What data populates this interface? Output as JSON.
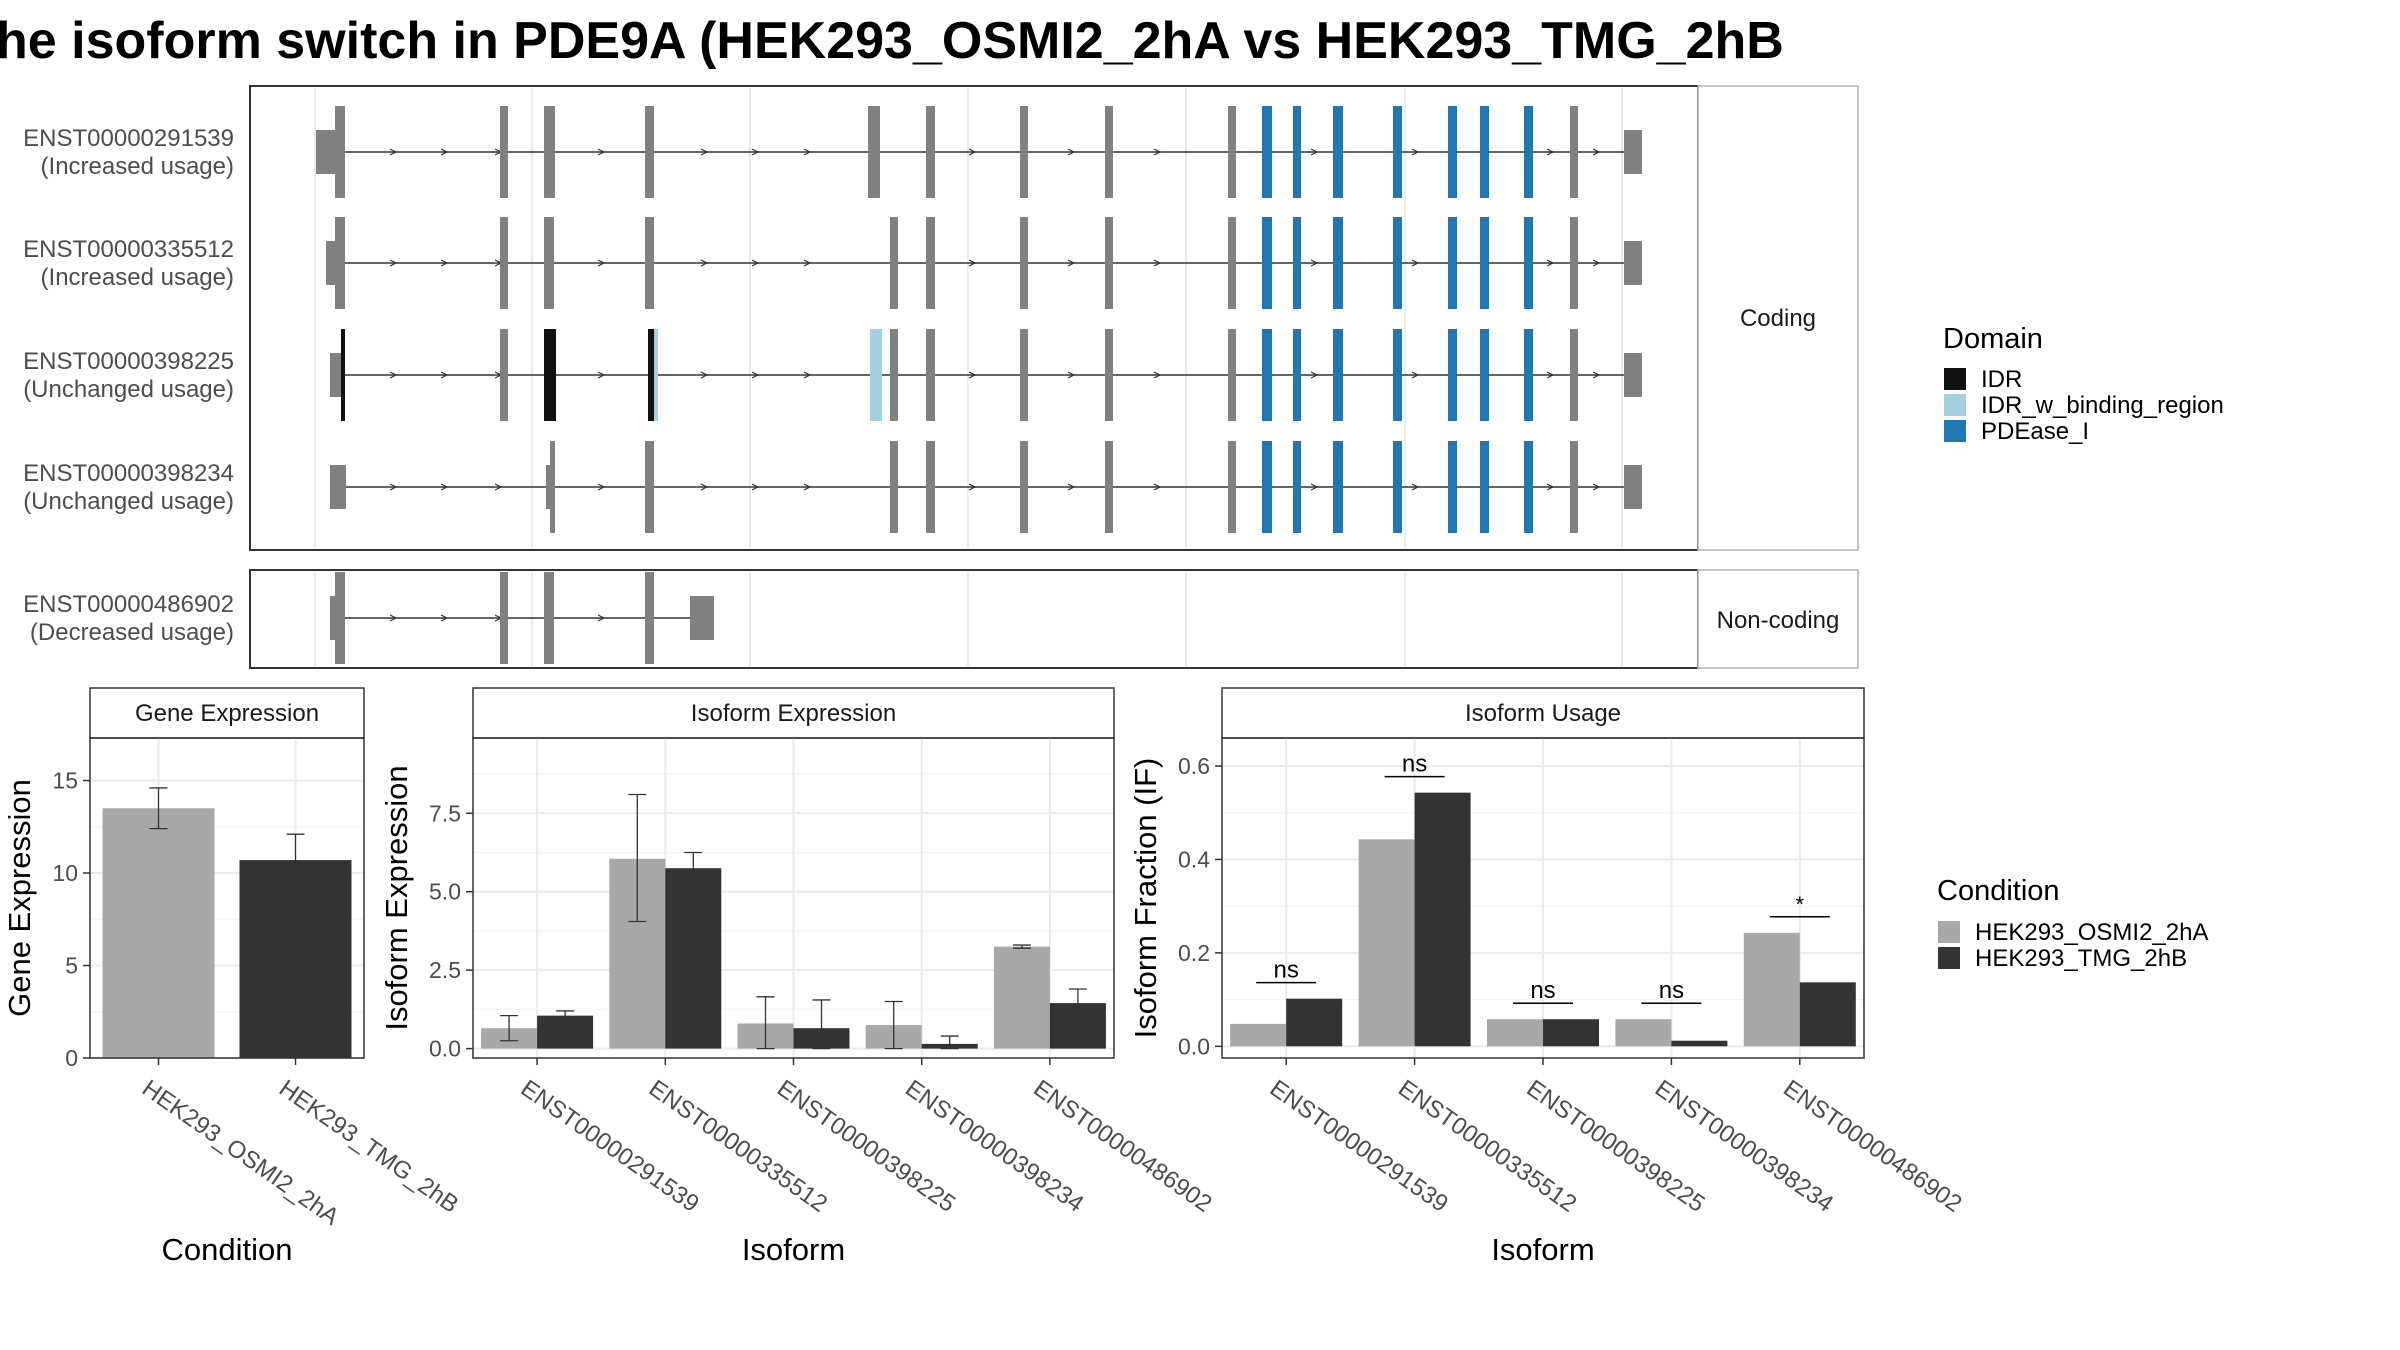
{
  "title": "he isoform switch in PDE9A (HEK293_OSMI2_2hA vs HEK293_TMG_2hB",
  "colors": {
    "exon": "#808080",
    "IDR": "#111111",
    "IDR_w_binding_region": "#a6cee3",
    "PDEase_I": "#1f78b4",
    "cond_a": "#a8a8a8",
    "cond_b": "#333333",
    "grid": "#ebebeb",
    "panel_border": "#333333",
    "strip_border": "#b3b3b3"
  },
  "structure": {
    "strip_labels": {
      "coding": "Coding",
      "noncoding": "Non-coding"
    },
    "legend": {
      "title": "Domain",
      "items": [
        {
          "label": "IDR",
          "color_key": "IDR"
        },
        {
          "label": "IDR_w_binding_region",
          "color_key": "IDR_w_binding_region"
        },
        {
          "label": "PDEase_I",
          "color_key": "PDEase_I"
        }
      ]
    },
    "isoforms": [
      {
        "id": "ENST00000291539",
        "usage": "(Increased usage)",
        "group": "coding"
      },
      {
        "id": "ENST00000335512",
        "usage": "(Increased usage)",
        "group": "coding"
      },
      {
        "id": "ENST00000398225",
        "usage": "(Unchanged usage)",
        "group": "coding"
      },
      {
        "id": "ENST00000398234",
        "usage": "(Unchanged usage)",
        "group": "coding"
      },
      {
        "id": "ENST00000486902",
        "usage": "(Decreased usage)",
        "group": "noncoding"
      }
    ]
  },
  "chart_data": [
    {
      "type": "bar",
      "title": "Gene Expression",
      "xlabel": "Condition",
      "ylabel": "Gene Expression",
      "categories": [
        "HEK293_OSMI2_2hA",
        "HEK293_TMG_2hB"
      ],
      "values": [
        13.5,
        10.7
      ],
      "errors": [
        [
          12.4,
          14.6
        ],
        [
          9.2,
          12.1
        ]
      ],
      "ylim": [
        0,
        17.3
      ],
      "yticks": [
        0,
        5,
        10,
        15
      ]
    },
    {
      "type": "bar",
      "title": "Isoform Expression",
      "xlabel": "Isoform",
      "ylabel": "Isoform Expression",
      "categories": [
        "ENST00000291539",
        "ENST00000335512",
        "ENST00000398225",
        "ENST00000398234",
        "ENST00000486902"
      ],
      "series": [
        {
          "name": "HEK293_OSMI2_2hA",
          "values": [
            0.65,
            6.05,
            0.8,
            0.75,
            3.25
          ],
          "errors": [
            [
              0.25,
              1.05
            ],
            [
              4.05,
              8.1
            ],
            [
              0.0,
              1.65
            ],
            [
              0.0,
              1.5
            ],
            [
              3.2,
              3.3
            ]
          ]
        },
        {
          "name": "HEK293_TMG_2hB",
          "values": [
            1.05,
            5.75,
            0.65,
            0.15,
            1.45
          ],
          "errors": [
            [
              0.9,
              1.2
            ],
            [
              5.3,
              6.25
            ],
            [
              0.0,
              1.55
            ],
            [
              0.0,
              0.4
            ],
            [
              1.0,
              1.9
            ]
          ]
        }
      ],
      "ylim": [
        -0.3,
        9.9
      ],
      "yticks": [
        0.0,
        2.5,
        5.0,
        7.5
      ]
    },
    {
      "type": "bar",
      "title": "Isoform Usage",
      "xlabel": "Isoform",
      "ylabel": "Isoform Fraction (IF)",
      "categories": [
        "ENST00000291539",
        "ENST00000335512",
        "ENST00000398225",
        "ENST00000398234",
        "ENST00000486902"
      ],
      "series": [
        {
          "name": "HEK293_OSMI2_2hA",
          "values": [
            0.048,
            0.443,
            0.058,
            0.058,
            0.243
          ]
        },
        {
          "name": "HEK293_TMG_2hB",
          "values": [
            0.102,
            0.543,
            0.058,
            0.012,
            0.137
          ]
        }
      ],
      "significance": [
        "ns",
        "ns",
        "ns",
        "ns",
        "*"
      ],
      "ylim": [
        -0.025,
        0.66
      ],
      "yticks": [
        0.0,
        0.2,
        0.4,
        0.6
      ]
    }
  ],
  "condition_legend": {
    "title": "Condition",
    "items": [
      {
        "label": "HEK293_OSMI2_2hA",
        "color_key": "cond_a"
      },
      {
        "label": "HEK293_TMG_2hB",
        "color_key": "cond_b"
      }
    ]
  }
}
